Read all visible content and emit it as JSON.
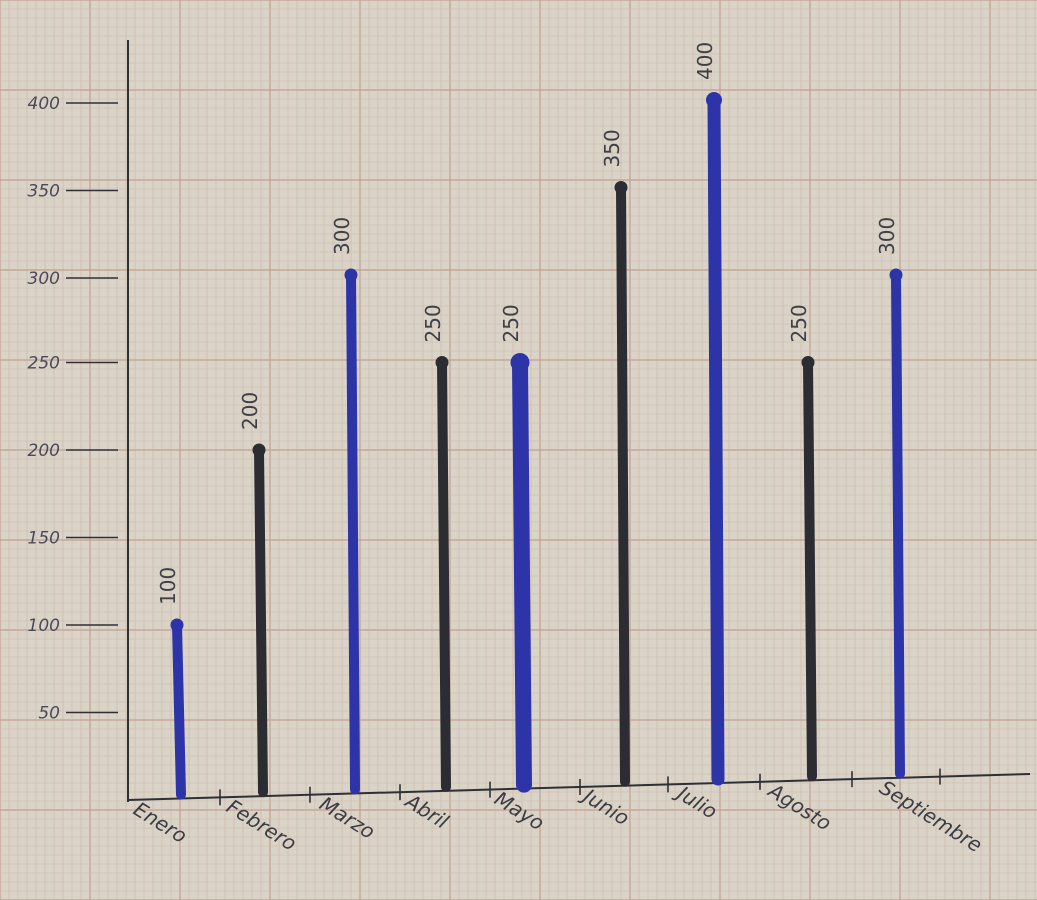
{
  "chart_data": {
    "type": "bar",
    "categories": [
      "Enero",
      "Febrero",
      "Marzo",
      "Abril",
      "Mayo",
      "Junio",
      "Julio",
      "Agosto",
      "Septiembre"
    ],
    "values": [
      100,
      200,
      300,
      250,
      250,
      350,
      400,
      250,
      300
    ],
    "data_labels": [
      "100",
      "200",
      "300",
      "250",
      "250",
      "350",
      "400",
      "250",
      "300"
    ],
    "bar_colors": [
      "#2d34a8",
      "#2b2d33",
      "#2d34a8",
      "#2b2d33",
      "#2d34a8",
      "#2b2d33",
      "#2d34a8",
      "#2b2d33",
      "#2d34a8"
    ],
    "yticks": [
      50,
      100,
      150,
      200,
      250,
      300,
      350,
      400
    ],
    "ytick_labels": [
      "50",
      "100",
      "150",
      "200",
      "250",
      "300",
      "350",
      "400"
    ],
    "ylim": [
      0,
      450
    ],
    "grid": true,
    "title": "",
    "xlabel": "",
    "ylabel": ""
  },
  "colors": {
    "paper": "#d9d3c8",
    "grid_minor": "#cdb8a8",
    "grid_major": "#c2a08e",
    "axis": "#2f3036"
  }
}
